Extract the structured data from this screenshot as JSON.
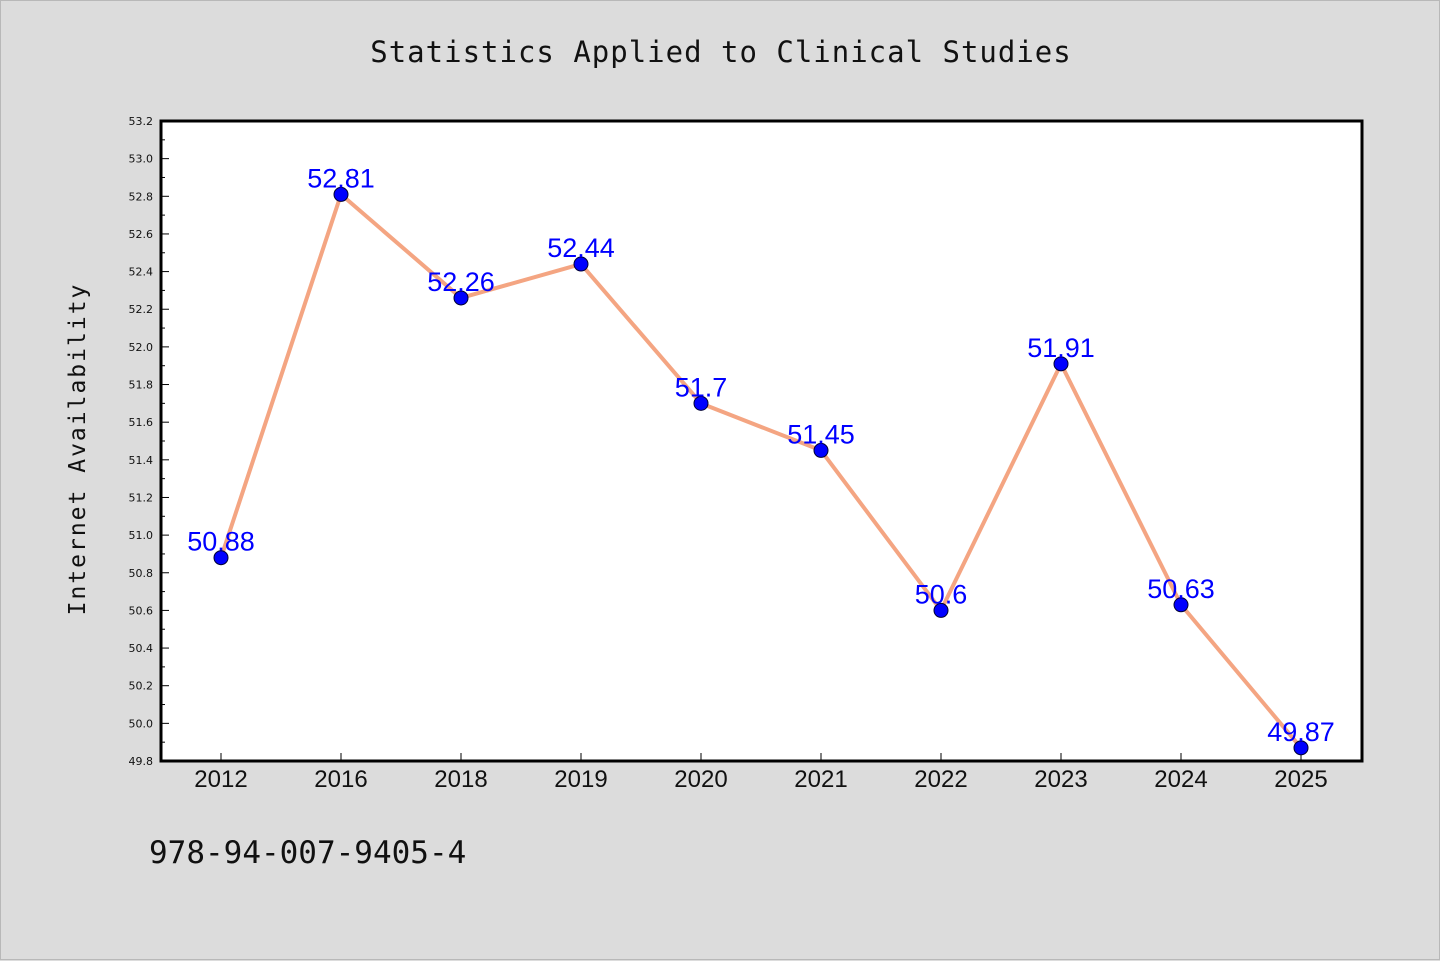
{
  "figure": {
    "title": "Statistics Applied to Clinical Studies",
    "footnote": "978-94-007-9405-4"
  },
  "colors": {
    "background": "#dcdcdc",
    "plot_background": "#ffffff",
    "line": "#f4a582",
    "marker": "#0000ff",
    "data_label": "#0000ff",
    "axis": "#000000"
  },
  "chart_data": {
    "type": "line",
    "title": "Statistics Applied to Clinical Studies",
    "xlabel": "",
    "ylabel": "Internet Availability",
    "categories": [
      "2012",
      "2016",
      "2018",
      "2019",
      "2020",
      "2021",
      "2022",
      "2023",
      "2024",
      "2025"
    ],
    "series": [
      {
        "values": [
          50.88,
          52.81,
          52.26,
          52.44,
          51.7,
          51.45,
          50.6,
          51.91,
          50.63,
          49.87
        ],
        "labels": [
          "50.88",
          "52.81",
          "52.26",
          "52.44",
          "51.7",
          "51.45",
          "50.6",
          "51.91",
          "50.63",
          "49.87"
        ]
      }
    ],
    "ylim": [
      49.8,
      53.2
    ],
    "yticks": [
      "49.8",
      "50.0",
      "50.2",
      "50.4",
      "50.6",
      "50.8",
      "51.0",
      "51.2",
      "51.4",
      "51.6",
      "51.8",
      "52.0",
      "52.2",
      "52.4",
      "52.6",
      "52.8",
      "53.0",
      "53.2"
    ],
    "grid": false,
    "legend": "none",
    "markers": "circle"
  }
}
